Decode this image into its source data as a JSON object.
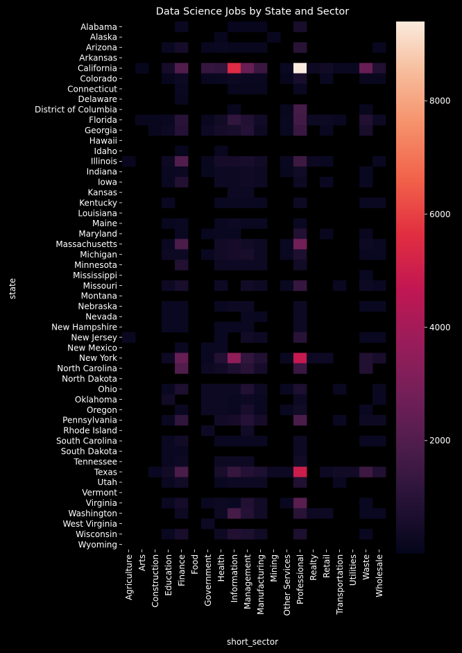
{
  "chart_data": {
    "type": "heatmap",
    "title": "Data Science Jobs by State and Sector",
    "xlabel": "short_sector",
    "ylabel": "state",
    "x_categories": [
      "Agriculture",
      "Arts",
      "Construction",
      "Education",
      "Finance",
      "Food",
      "Government",
      "Health",
      "Information",
      "Management",
      "Manufacturing",
      "Mining",
      "Other Services",
      "Professional",
      "Realty",
      "Retail",
      "Transportation",
      "Utilities",
      "Waste",
      "Wholesale"
    ],
    "y_categories": [
      "Alabama",
      "Alaska",
      "Arizona",
      "Arkansas",
      "California",
      "Colorado",
      "Connecticut",
      "Delaware",
      "District of Columbia",
      "Florida",
      "Georgia",
      "Hawaii",
      "Idaho",
      "Illinois",
      "Indiana",
      "Iowa",
      "Kansas",
      "Kentucky",
      "Louisiana",
      "Maine",
      "Maryland",
      "Massachusetts",
      "Michigan",
      "Minnesota",
      "Mississippi",
      "Missouri",
      "Montana",
      "Nebraska",
      "Nevada",
      "New Hampshire",
      "New Jersey",
      "New Mexico",
      "New York",
      "North Carolina",
      "North Dakota",
      "Ohio",
      "Oklahoma",
      "Oregon",
      "Pennsylvania",
      "Rhode Island",
      "South Carolina",
      "South Dakota",
      "Tennessee",
      "Texas",
      "Utah",
      "Vermont",
      "Virginia",
      "Washington",
      "West Virginia",
      "Wisconsin",
      "Wyoming"
    ],
    "values": [
      [
        null,
        null,
        null,
        null,
        200,
        null,
        null,
        null,
        100,
        100,
        100,
        null,
        null,
        600,
        null,
        null,
        null,
        null,
        null,
        null
      ],
      [
        null,
        null,
        null,
        null,
        null,
        null,
        null,
        100,
        null,
        null,
        null,
        150,
        null,
        null,
        null,
        null,
        null,
        null,
        null,
        null
      ],
      [
        null,
        null,
        null,
        200,
        500,
        null,
        150,
        200,
        150,
        150,
        150,
        null,
        null,
        1000,
        null,
        null,
        null,
        null,
        null,
        150
      ],
      [
        null,
        null,
        null,
        null,
        null,
        null,
        null,
        null,
        null,
        null,
        null,
        null,
        null,
        null,
        null,
        null,
        null,
        null,
        null,
        null
      ],
      [
        null,
        100,
        null,
        500,
        2000,
        null,
        1300,
        1200,
        5500,
        2500,
        1400,
        null,
        200,
        9400,
        300,
        400,
        200,
        200,
        2500,
        800
      ],
      [
        null,
        null,
        null,
        100,
        300,
        null,
        150,
        200,
        300,
        200,
        200,
        null,
        100,
        600,
        null,
        200,
        null,
        null,
        150,
        150
      ],
      [
        null,
        null,
        null,
        null,
        200,
        null,
        null,
        null,
        150,
        150,
        150,
        null,
        null,
        200,
        null,
        null,
        null,
        null,
        null,
        null
      ],
      [
        null,
        null,
        null,
        null,
        150,
        null,
        null,
        null,
        null,
        null,
        null,
        null,
        null,
        null,
        null,
        null,
        null,
        null,
        null,
        null
      ],
      [
        null,
        null,
        null,
        null,
        null,
        null,
        null,
        null,
        150,
        null,
        null,
        null,
        150,
        1700,
        null,
        null,
        null,
        null,
        150,
        null
      ],
      [
        null,
        150,
        150,
        200,
        1000,
        null,
        150,
        400,
        1200,
        800,
        400,
        null,
        200,
        1600,
        300,
        300,
        200,
        null,
        800,
        300
      ],
      [
        null,
        null,
        150,
        300,
        900,
        null,
        300,
        500,
        600,
        900,
        300,
        null,
        200,
        1400,
        null,
        200,
        null,
        null,
        600,
        null
      ],
      [
        null,
        null,
        null,
        null,
        null,
        null,
        null,
        null,
        null,
        null,
        null,
        null,
        null,
        null,
        null,
        null,
        null,
        null,
        null,
        null
      ],
      [
        null,
        null,
        null,
        null,
        100,
        null,
        null,
        150,
        null,
        null,
        null,
        null,
        null,
        null,
        null,
        null,
        null,
        null,
        null,
        null
      ],
      [
        150,
        null,
        null,
        300,
        2000,
        null,
        150,
        500,
        500,
        600,
        400,
        null,
        200,
        1500,
        250,
        200,
        null,
        null,
        null,
        200
      ],
      [
        null,
        null,
        null,
        200,
        250,
        null,
        150,
        300,
        300,
        350,
        300,
        null,
        150,
        400,
        null,
        null,
        null,
        null,
        200,
        null
      ],
      [
        null,
        null,
        null,
        200,
        800,
        null,
        null,
        300,
        300,
        350,
        300,
        null,
        null,
        300,
        null,
        200,
        null,
        null,
        200,
        null
      ],
      [
        null,
        null,
        null,
        null,
        null,
        null,
        null,
        null,
        300,
        300,
        null,
        null,
        null,
        null,
        null,
        null,
        null,
        null,
        null,
        null
      ],
      [
        null,
        null,
        null,
        200,
        null,
        null,
        null,
        200,
        200,
        200,
        200,
        null,
        null,
        300,
        null,
        null,
        null,
        null,
        200,
        200
      ],
      [
        null,
        null,
        null,
        null,
        null,
        null,
        null,
        null,
        null,
        null,
        null,
        null,
        null,
        null,
        null,
        null,
        null,
        null,
        null,
        null
      ],
      [
        null,
        null,
        null,
        150,
        200,
        null,
        null,
        200,
        300,
        200,
        200,
        null,
        null,
        200,
        null,
        null,
        null,
        null,
        null,
        null
      ],
      [
        null,
        null,
        null,
        null,
        200,
        null,
        150,
        200,
        200,
        null,
        null,
        null,
        null,
        800,
        null,
        150,
        null,
        null,
        150,
        null
      ],
      [
        null,
        null,
        null,
        200,
        1800,
        null,
        null,
        400,
        500,
        400,
        300,
        null,
        200,
        2800,
        null,
        null,
        null,
        null,
        300,
        200
      ],
      [
        null,
        null,
        null,
        300,
        300,
        null,
        200,
        400,
        500,
        600,
        300,
        null,
        200,
        700,
        null,
        null,
        null,
        null,
        200,
        200
      ],
      [
        null,
        null,
        null,
        null,
        800,
        null,
        null,
        300,
        300,
        300,
        300,
        null,
        null,
        400,
        null,
        null,
        null,
        null,
        null,
        null
      ],
      [
        null,
        null,
        null,
        null,
        null,
        null,
        null,
        null,
        null,
        null,
        null,
        null,
        null,
        null,
        null,
        null,
        null,
        null,
        200,
        null
      ],
      [
        null,
        null,
        null,
        300,
        600,
        null,
        null,
        300,
        null,
        400,
        300,
        null,
        200,
        1300,
        null,
        null,
        200,
        null,
        300,
        200
      ],
      [
        null,
        null,
        null,
        null,
        null,
        null,
        null,
        null,
        null,
        null,
        null,
        null,
        null,
        null,
        null,
        null,
        null,
        null,
        null,
        null
      ],
      [
        null,
        null,
        null,
        200,
        200,
        null,
        null,
        200,
        300,
        300,
        null,
        null,
        null,
        300,
        null,
        null,
        null,
        null,
        200,
        200
      ],
      [
        null,
        null,
        null,
        200,
        200,
        null,
        null,
        null,
        null,
        200,
        200,
        null,
        null,
        300,
        null,
        null,
        null,
        null,
        null,
        null
      ],
      [
        null,
        null,
        null,
        200,
        200,
        null,
        null,
        200,
        200,
        200,
        null,
        null,
        null,
        300,
        null,
        null,
        null,
        null,
        null,
        null
      ],
      [
        200,
        null,
        null,
        null,
        null,
        null,
        null,
        200,
        null,
        400,
        300,
        null,
        null,
        1000,
        null,
        null,
        null,
        null,
        200,
        200
      ],
      [
        null,
        null,
        null,
        null,
        200,
        null,
        200,
        200,
        null,
        null,
        null,
        null,
        null,
        null,
        null,
        null,
        null,
        null,
        null,
        null
      ],
      [
        null,
        null,
        null,
        300,
        2500,
        null,
        200,
        800,
        3500,
        1200,
        800,
        null,
        200,
        4800,
        300,
        300,
        null,
        null,
        800,
        600
      ],
      [
        null,
        null,
        null,
        null,
        2000,
        null,
        300,
        400,
        700,
        1000,
        500,
        null,
        null,
        1400,
        null,
        null,
        null,
        null,
        800,
        null
      ],
      [
        null,
        null,
        null,
        null,
        null,
        null,
        null,
        null,
        null,
        null,
        null,
        null,
        null,
        null,
        null,
        null,
        null,
        null,
        null,
        null
      ],
      [
        null,
        null,
        null,
        200,
        700,
        null,
        300,
        300,
        300,
        800,
        300,
        null,
        200,
        700,
        null,
        null,
        200,
        null,
        null,
        200
      ],
      [
        null,
        null,
        null,
        400,
        null,
        null,
        300,
        300,
        200,
        300,
        200,
        null,
        null,
        300,
        null,
        null,
        null,
        null,
        null,
        200
      ],
      [
        null,
        null,
        null,
        null,
        200,
        null,
        300,
        300,
        200,
        600,
        200,
        null,
        200,
        400,
        null,
        null,
        null,
        null,
        200,
        null
      ],
      [
        null,
        null,
        null,
        200,
        1200,
        null,
        null,
        400,
        500,
        900,
        500,
        null,
        null,
        1800,
        null,
        null,
        200,
        null,
        300,
        300
      ],
      [
        null,
        null,
        null,
        null,
        null,
        null,
        300,
        null,
        null,
        400,
        null,
        null,
        null,
        null,
        null,
        null,
        null,
        null,
        null,
        null
      ],
      [
        null,
        null,
        null,
        200,
        400,
        null,
        null,
        200,
        200,
        200,
        200,
        null,
        null,
        300,
        null,
        null,
        null,
        null,
        200,
        200
      ],
      [
        null,
        null,
        null,
        200,
        200,
        null,
        null,
        null,
        null,
        null,
        null,
        null,
        null,
        300,
        null,
        null,
        null,
        null,
        null,
        null
      ],
      [
        null,
        null,
        null,
        200,
        300,
        null,
        null,
        300,
        300,
        300,
        null,
        null,
        null,
        400,
        null,
        null,
        null,
        null,
        null,
        null
      ],
      [
        null,
        null,
        200,
        400,
        1800,
        null,
        null,
        600,
        1300,
        900,
        700,
        300,
        300,
        5000,
        null,
        300,
        400,
        400,
        1500,
        800
      ],
      [
        null,
        null,
        null,
        200,
        400,
        null,
        null,
        200,
        300,
        300,
        300,
        null,
        null,
        800,
        null,
        null,
        200,
        null,
        null,
        null
      ],
      [
        null,
        null,
        null,
        null,
        null,
        null,
        null,
        null,
        null,
        null,
        null,
        null,
        null,
        null,
        null,
        null,
        null,
        null,
        null,
        null
      ],
      [
        null,
        null,
        null,
        200,
        500,
        null,
        200,
        300,
        200,
        800,
        400,
        null,
        200,
        2200,
        null,
        null,
        null,
        null,
        200,
        null
      ],
      [
        null,
        null,
        null,
        null,
        300,
        null,
        null,
        300,
        1700,
        900,
        400,
        null,
        null,
        1000,
        300,
        300,
        null,
        null,
        200,
        200
      ],
      [
        null,
        null,
        null,
        null,
        null,
        null,
        300,
        null,
        null,
        null,
        null,
        null,
        null,
        null,
        null,
        null,
        null,
        null,
        null,
        null
      ],
      [
        null,
        null,
        null,
        200,
        600,
        null,
        null,
        300,
        800,
        700,
        400,
        null,
        null,
        700,
        null,
        null,
        null,
        null,
        200,
        null
      ],
      [
        null,
        null,
        null,
        null,
        null,
        null,
        null,
        null,
        null,
        null,
        null,
        null,
        null,
        null,
        null,
        null,
        null,
        null,
        null,
        null
      ]
    ],
    "vmin": 1,
    "vmax": 9400,
    "colorbar_ticks": [
      2000,
      4000,
      6000,
      8000
    ],
    "colormap": "rocket",
    "background_color": "#000000",
    "text_color": "#ffffff"
  }
}
